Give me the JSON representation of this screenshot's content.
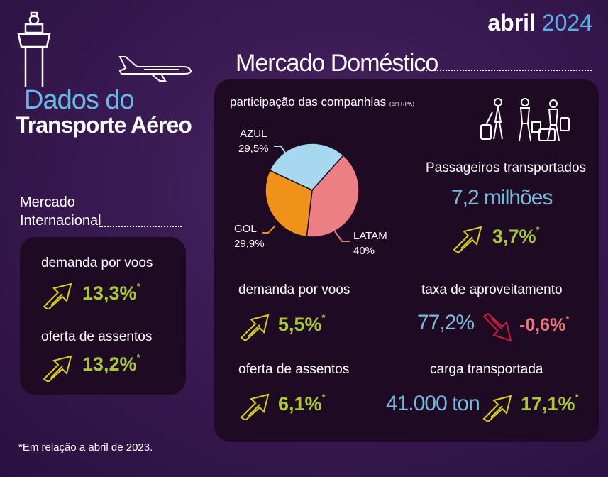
{
  "header": {
    "title_line1": "Dados do",
    "title_line2": "Transporte Aéreo",
    "month": "abril",
    "year": "2024"
  },
  "domestic": {
    "section_title": "Mercado Doméstico",
    "share_title": "participação das companhias",
    "share_unit": "(em RPK)",
    "passengers_label": "Passageiros transportados",
    "passengers_value": "7,2 milhões",
    "passengers_change": "3,7%",
    "demand_label": "demanda por voos",
    "demand_change": "5,5%",
    "load_factor_label": "taxa de aproveitamento",
    "load_factor_value": "77,2%",
    "load_factor_change": "-0,6%",
    "seats_label": "oferta de assentos",
    "seats_change": "6,1%",
    "cargo_label": "carga transportada",
    "cargo_value": "41.000 ton",
    "cargo_change": "17,1%"
  },
  "international": {
    "section_title_line1": "Mercado",
    "section_title_line2": "Internacional",
    "demand_label": "demanda por voos",
    "demand_change": "13,3%",
    "seats_label": "oferta de assentos",
    "seats_change": "13,2%"
  },
  "asterisk": "*",
  "footnote": "*Em relação a abril de 2023.",
  "colors": {
    "green": "#a6c83a",
    "red": "#e8787a",
    "blue": "#7ab8dc",
    "arrow_yellow": "#d8d020",
    "arrow_red": "#c81e3c"
  },
  "chart_data": {
    "type": "pie",
    "title": "participação das companhias",
    "subtitle": "(em RPK)",
    "slices": [
      {
        "label": "AZUL",
        "value": 29.5,
        "display": "29,5%",
        "color": "#a6d8f0"
      },
      {
        "label": "LATAM",
        "value": 40,
        "display": "40%",
        "color": "#ec7f84"
      },
      {
        "label": "GOL",
        "value": 29.9,
        "display": "29,9%",
        "color": "#f0921a"
      }
    ]
  }
}
